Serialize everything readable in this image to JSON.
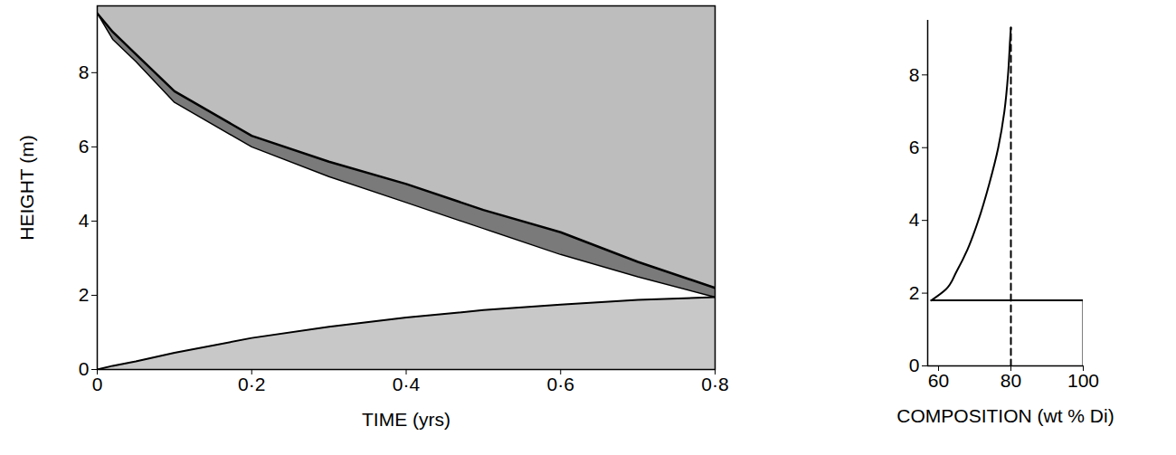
{
  "chart_data": [
    {
      "type": "area",
      "x_label": "TIME (yrs)",
      "y_label": "HEIGHT (m)",
      "x": [
        0,
        0.02,
        0.05,
        0.1,
        0.2,
        0.3,
        0.4,
        0.5,
        0.6,
        0.7,
        0.8
      ],
      "series": [
        {
          "color": "#bdbdbd",
          "values": [
            9.6,
            9.1,
            8.5,
            7.5,
            6.3,
            5.6,
            5.0,
            4.3,
            3.7,
            2.9,
            2.2
          ]
        },
        {
          "color": "#7a7a7a",
          "values": [
            9.6,
            8.9,
            8.3,
            7.2,
            6.0,
            5.2,
            4.5,
            3.8,
            3.1,
            2.5,
            1.95
          ]
        },
        {
          "color": "#c8c8c8",
          "values": [
            0,
            0.1,
            0.22,
            0.45,
            0.85,
            1.15,
            1.4,
            1.6,
            1.75,
            1.88,
            1.95
          ]
        }
      ],
      "xlim": [
        0,
        0.8
      ],
      "xticks": [
        0,
        {
          "value": 0.2,
          "label": "0·2"
        },
        {
          "value": 0.4,
          "label": "0·4"
        },
        {
          "value": 0.6,
          "label": "0·6"
        },
        {
          "value": 0.8,
          "label": "0·8"
        }
      ],
      "ylim": [
        0,
        9.8
      ],
      "yticks": [
        0,
        2,
        4,
        6,
        8
      ]
    },
    {
      "type": "line",
      "x_label": "COMPOSITION (wt % Di)",
      "series": [
        {
          "color": "#000000",
          "line_style": "solid",
          "x": [
            58,
            62,
            65,
            68,
            71,
            74,
            76.5,
            78.2,
            79.2,
            79.8,
            80
          ],
          "values": [
            1.8,
            2.1,
            2.6,
            3.2,
            4,
            5,
            6,
            7,
            8,
            9,
            9.3
          ]
        },
        {
          "color": "#000000",
          "line_style": "dashed",
          "x": [
            80,
            80
          ],
          "values": [
            0,
            9.3
          ]
        },
        {
          "color": "#000000",
          "line_style": "solid",
          "x": [
            58,
            100,
            100
          ],
          "values": [
            1.8,
            1.8,
            0
          ]
        }
      ],
      "xlim": [
        57,
        100
      ],
      "xticks": [
        60,
        80,
        100
      ],
      "ylim": [
        0,
        9.5
      ],
      "yticks": [
        0,
        2,
        4,
        6,
        8
      ]
    }
  ]
}
